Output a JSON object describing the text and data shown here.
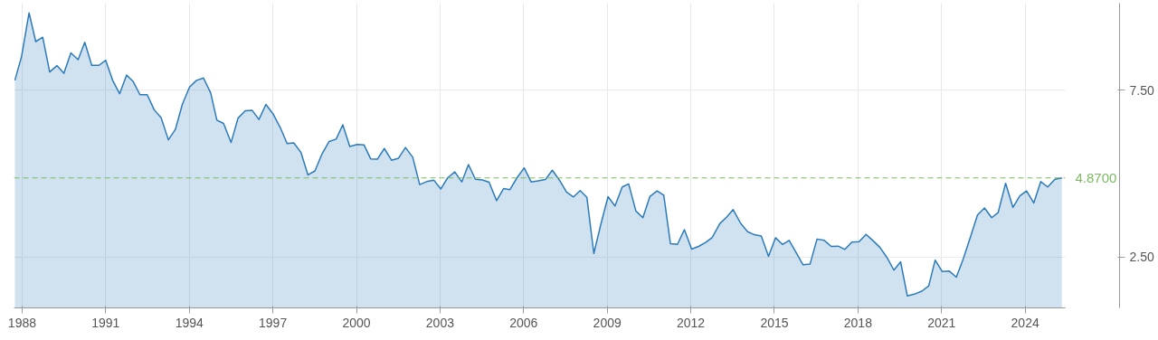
{
  "chart_data": {
    "type": "area",
    "x": [
      1987.74,
      1987.98,
      1988.25,
      1988.49,
      1988.74,
      1988.99,
      1989.25,
      1989.5,
      1989.75,
      1990.01,
      1990.25,
      1990.5,
      1990.76,
      1991.0,
      1991.25,
      1991.5,
      1991.75,
      1991.99,
      1992.23,
      1992.49,
      1992.74,
      1992.99,
      1993.25,
      1993.5,
      1993.75,
      1994.01,
      1994.26,
      1994.51,
      1994.77,
      1994.99,
      1995.23,
      1995.5,
      1995.75,
      1996.01,
      1996.26,
      1996.5,
      1996.75,
      1997.02,
      1997.27,
      1997.51,
      1997.75,
      1998.01,
      1998.26,
      1998.51,
      1998.77,
      1999.02,
      1999.27,
      1999.51,
      1999.76,
      2000.03,
      2000.27,
      2000.51,
      2000.75,
      2001.0,
      2001.26,
      2001.51,
      2001.76,
      2002.02,
      2002.27,
      2002.52,
      2002.78,
      2003.03,
      2003.27,
      2003.53,
      2003.78,
      2004.02,
      2004.27,
      2004.52,
      2004.76,
      2005.03,
      2005.28,
      2005.51,
      2005.76,
      2006.02,
      2006.27,
      2006.52,
      2006.78,
      2007.03,
      2007.28,
      2007.54,
      2007.79,
      2008.03,
      2008.27,
      2008.52,
      2008.78,
      2009.03,
      2009.28,
      2009.54,
      2009.77,
      2010.03,
      2010.28,
      2010.53,
      2010.79,
      2011.03,
      2011.27,
      2011.52,
      2011.77,
      2012.03,
      2012.28,
      2012.53,
      2012.77,
      2013.04,
      2013.29,
      2013.52,
      2013.79,
      2014.04,
      2014.28,
      2014.53,
      2014.79,
      2015.04,
      2015.29,
      2015.53,
      2015.8,
      2016.03,
      2016.28,
      2016.53,
      2016.79,
      2017.04,
      2017.29,
      2017.53,
      2017.78,
      2018.04,
      2018.29,
      2018.53,
      2018.79,
      2019.04,
      2019.29,
      2019.53,
      2019.77,
      2020.02,
      2020.29,
      2020.54,
      2020.77,
      2021.02,
      2021.28,
      2021.53,
      2021.78,
      2022.04,
      2022.29,
      2022.54,
      2022.8,
      2023.03,
      2023.3,
      2023.56,
      2023.81,
      2024.05,
      2024.31,
      2024.56,
      2024.81,
      2025.07,
      2025.32
    ],
    "series": [
      {
        "color": "#2b7bba",
        "values": [
          7.79,
          8.5,
          9.81,
          8.95,
          9.08,
          8.04,
          8.23,
          8.0,
          8.61,
          8.41,
          8.93,
          8.24,
          8.24,
          8.39,
          7.79,
          7.39,
          7.95,
          7.75,
          7.36,
          7.36,
          6.91,
          6.67,
          6.01,
          6.32,
          7.07,
          7.59,
          7.79,
          7.86,
          7.41,
          6.6,
          6.5,
          5.93,
          6.66,
          6.88,
          6.89,
          6.62,
          7.07,
          6.77,
          6.37,
          5.9,
          5.92,
          5.63,
          4.96,
          5.08,
          5.6,
          5.96,
          6.03,
          6.46,
          5.81,
          5.87,
          5.86,
          5.44,
          5.43,
          5.75,
          5.4,
          5.46,
          5.78,
          5.49,
          4.67,
          4.76,
          4.8,
          4.54,
          4.87,
          5.05,
          4.75,
          5.27,
          4.83,
          4.81,
          4.74,
          4.19,
          4.55,
          4.52,
          4.87,
          5.17,
          4.75,
          4.78,
          4.82,
          5.1,
          4.81,
          4.45,
          4.3,
          4.49,
          4.29,
          2.61,
          3.51,
          4.31,
          4.03,
          4.6,
          4.69,
          3.88,
          3.68,
          4.31,
          4.48,
          4.35,
          2.9,
          2.88,
          3.32,
          2.74,
          2.82,
          2.94,
          3.09,
          3.5,
          3.7,
          3.92,
          3.51,
          3.26,
          3.17,
          3.13,
          2.52,
          3.08,
          2.88,
          3.0,
          2.61,
          2.27,
          2.29,
          3.04,
          3.0,
          2.82,
          2.83,
          2.73,
          2.95,
          2.96,
          3.18,
          3.0,
          2.79,
          2.49,
          2.11,
          2.36,
          1.34,
          1.39,
          1.48,
          1.64,
          2.41,
          2.07,
          2.08,
          1.9,
          2.45,
          3.11,
          3.76,
          3.97,
          3.68,
          3.83,
          4.71,
          3.99,
          4.33,
          4.48,
          4.12,
          4.76,
          4.6,
          4.83,
          4.87
        ]
      }
    ],
    "xlim": [
      1987.71,
      2025.44
    ],
    "ylim": [
      0.98,
      10.1
    ],
    "xticks": [
      1988,
      1991,
      1994,
      1997,
      2000,
      2003,
      2006,
      2009,
      2012,
      2015,
      2018,
      2021,
      2024
    ],
    "yticks": [
      {
        "value": 2.5,
        "label": "2.50"
      },
      {
        "value": 7.5,
        "label": "7.50"
      }
    ],
    "grid": true,
    "ref_lines": [
      {
        "axis": "y",
        "value": 4.87,
        "label": "4.8700",
        "color": "#7dbb62",
        "line_style": "dashed"
      }
    ]
  }
}
